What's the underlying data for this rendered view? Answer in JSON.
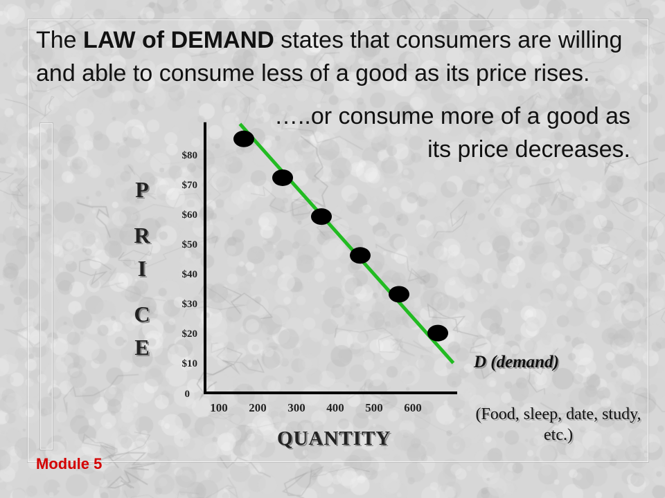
{
  "headline": {
    "prefix": "The ",
    "emphasis": "LAW of DEMAND",
    "rest": " states that consumers are willing and able to consume less of a good as its price rises.",
    "continuation": "…..or consume more of a good as its price decreases."
  },
  "footer": "Module 5",
  "chart_data": {
    "type": "line",
    "y_axis_label_letters": [
      "P",
      "R",
      "I",
      "C",
      "E"
    ],
    "xlabel": "QUANTITY",
    "x_ticks": [
      "100",
      "200",
      "300",
      "400",
      "500",
      "600"
    ],
    "y_ticks": [
      "0",
      "$10",
      "$20",
      "$30",
      "$40",
      "$50",
      "$60",
      "$70",
      "$80"
    ],
    "xlim": [
      0,
      650
    ],
    "ylim": [
      0,
      85
    ],
    "series": [
      {
        "name": "D (demand)",
        "color": "#22bb22",
        "line_x": [
          90,
          640
        ],
        "line_y": [
          90,
          10
        ],
        "points": [
          {
            "x": 100,
            "y": 85
          },
          {
            "x": 200,
            "y": 72
          },
          {
            "x": 300,
            "y": 59
          },
          {
            "x": 400,
            "y": 46
          },
          {
            "x": 500,
            "y": 33
          },
          {
            "x": 600,
            "y": 20
          }
        ]
      }
    ],
    "annotation": "(Food, sleep, date, study, etc.)",
    "marker_color": "#000000",
    "axis_color": "#000000"
  }
}
